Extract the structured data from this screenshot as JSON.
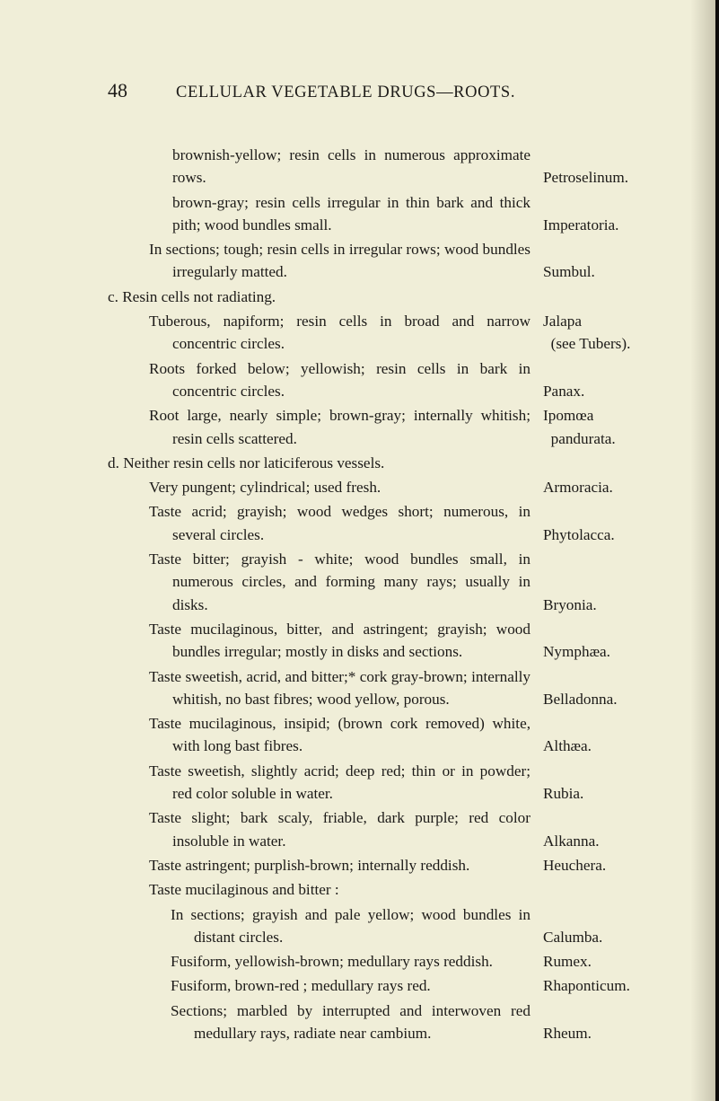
{
  "page_number": "48",
  "header": "CELLULAR VEGETABLE DRUGS—ROOTS.",
  "entries": [
    {
      "desc": "brownish-yellow; resin cells in numerous approximate rows.",
      "label": "Petroselinum.",
      "cls": "ind1-first"
    },
    {
      "desc": "brown-gray; resin cells irregular in thin bark and thick pith; wood bundles small.",
      "label": "Imperatoria.",
      "cls": "ind1-first"
    },
    {
      "desc": "In sections; tough; resin cells in irregular rows; wood bundles irregularly matted.",
      "label": "Sumbul.",
      "cls": "ind1"
    },
    {
      "desc": "c. Resin cells not radiating.",
      "label": "",
      "cls": "section"
    },
    {
      "desc": "Tuberous, napiform; resin cells in broad and narrow concentric circles.",
      "label": "Jalapa\n  (see Tubers).",
      "cls": "ind1"
    },
    {
      "desc": "Roots forked below; yellowish; resin cells in bark in concentric circles.",
      "label": "Panax.",
      "cls": "ind1"
    },
    {
      "desc": "Root large, nearly simple; brown-gray; internally whitish; resin cells scattered.",
      "label": "Ipomœa\n  pandurata.",
      "cls": "ind1"
    },
    {
      "desc": "d. Neither resin cells nor laticiferous vessels.",
      "label": "",
      "cls": "section"
    },
    {
      "desc": "Very pungent; cylindrical; used fresh.",
      "label": "Armoracia.",
      "cls": "ind1"
    },
    {
      "desc": "Taste acrid; grayish; wood wedges short; numerous, in several circles.",
      "label": "Phytolacca.",
      "cls": "ind1"
    },
    {
      "desc": "Taste bitter; grayish - white; wood bundles small, in numerous circles, and forming many rays; usually in disks.",
      "label": "Bryonia.",
      "cls": "ind1"
    },
    {
      "desc": "Taste mucilaginous, bitter, and astringent; grayish; wood bundles irregular; mostly in disks and sections.",
      "label": "Nymphæa.",
      "cls": "ind1"
    },
    {
      "desc": "Taste sweetish, acrid, and bitter;* cork gray-brown; internally whitish, no bast fibres; wood yellow, porous.",
      "label": "Belladonna.",
      "cls": "ind1"
    },
    {
      "desc": "Taste mucilaginous, insipid; (brown cork removed) white, with long bast fibres.",
      "label": "Althæa.",
      "cls": "ind1"
    },
    {
      "desc": "Taste sweetish, slightly acrid; deep red; thin or in powder; red color soluble in water.",
      "label": "Rubia.",
      "cls": "ind1"
    },
    {
      "desc": "Taste slight; bark scaly, friable, dark purple; red color insoluble in water.",
      "label": "Alkanna.",
      "cls": "ind1"
    },
    {
      "desc": "Taste astringent; purplish-brown; internally reddish.",
      "label": "Heuchera.",
      "cls": "ind1"
    },
    {
      "desc": "Taste mucilaginous and bitter :",
      "label": "",
      "cls": "ind1"
    },
    {
      "desc": "In sections; grayish and pale yellow; wood bundles in distant circles.",
      "label": "Calumba.",
      "cls": "ind2"
    },
    {
      "desc": "Fusiform, yellowish-brown; medullary rays reddish.",
      "label": "Rumex.",
      "cls": "ind2"
    },
    {
      "desc": "Fusiform, brown-red ; medullary rays red.",
      "label": "Rhaponticum.",
      "cls": "ind2"
    },
    {
      "desc": "Sections; marbled by interrupted and interwoven red medullary rays, radiate near cambium.",
      "label": "Rheum.",
      "cls": "ind2"
    }
  ]
}
